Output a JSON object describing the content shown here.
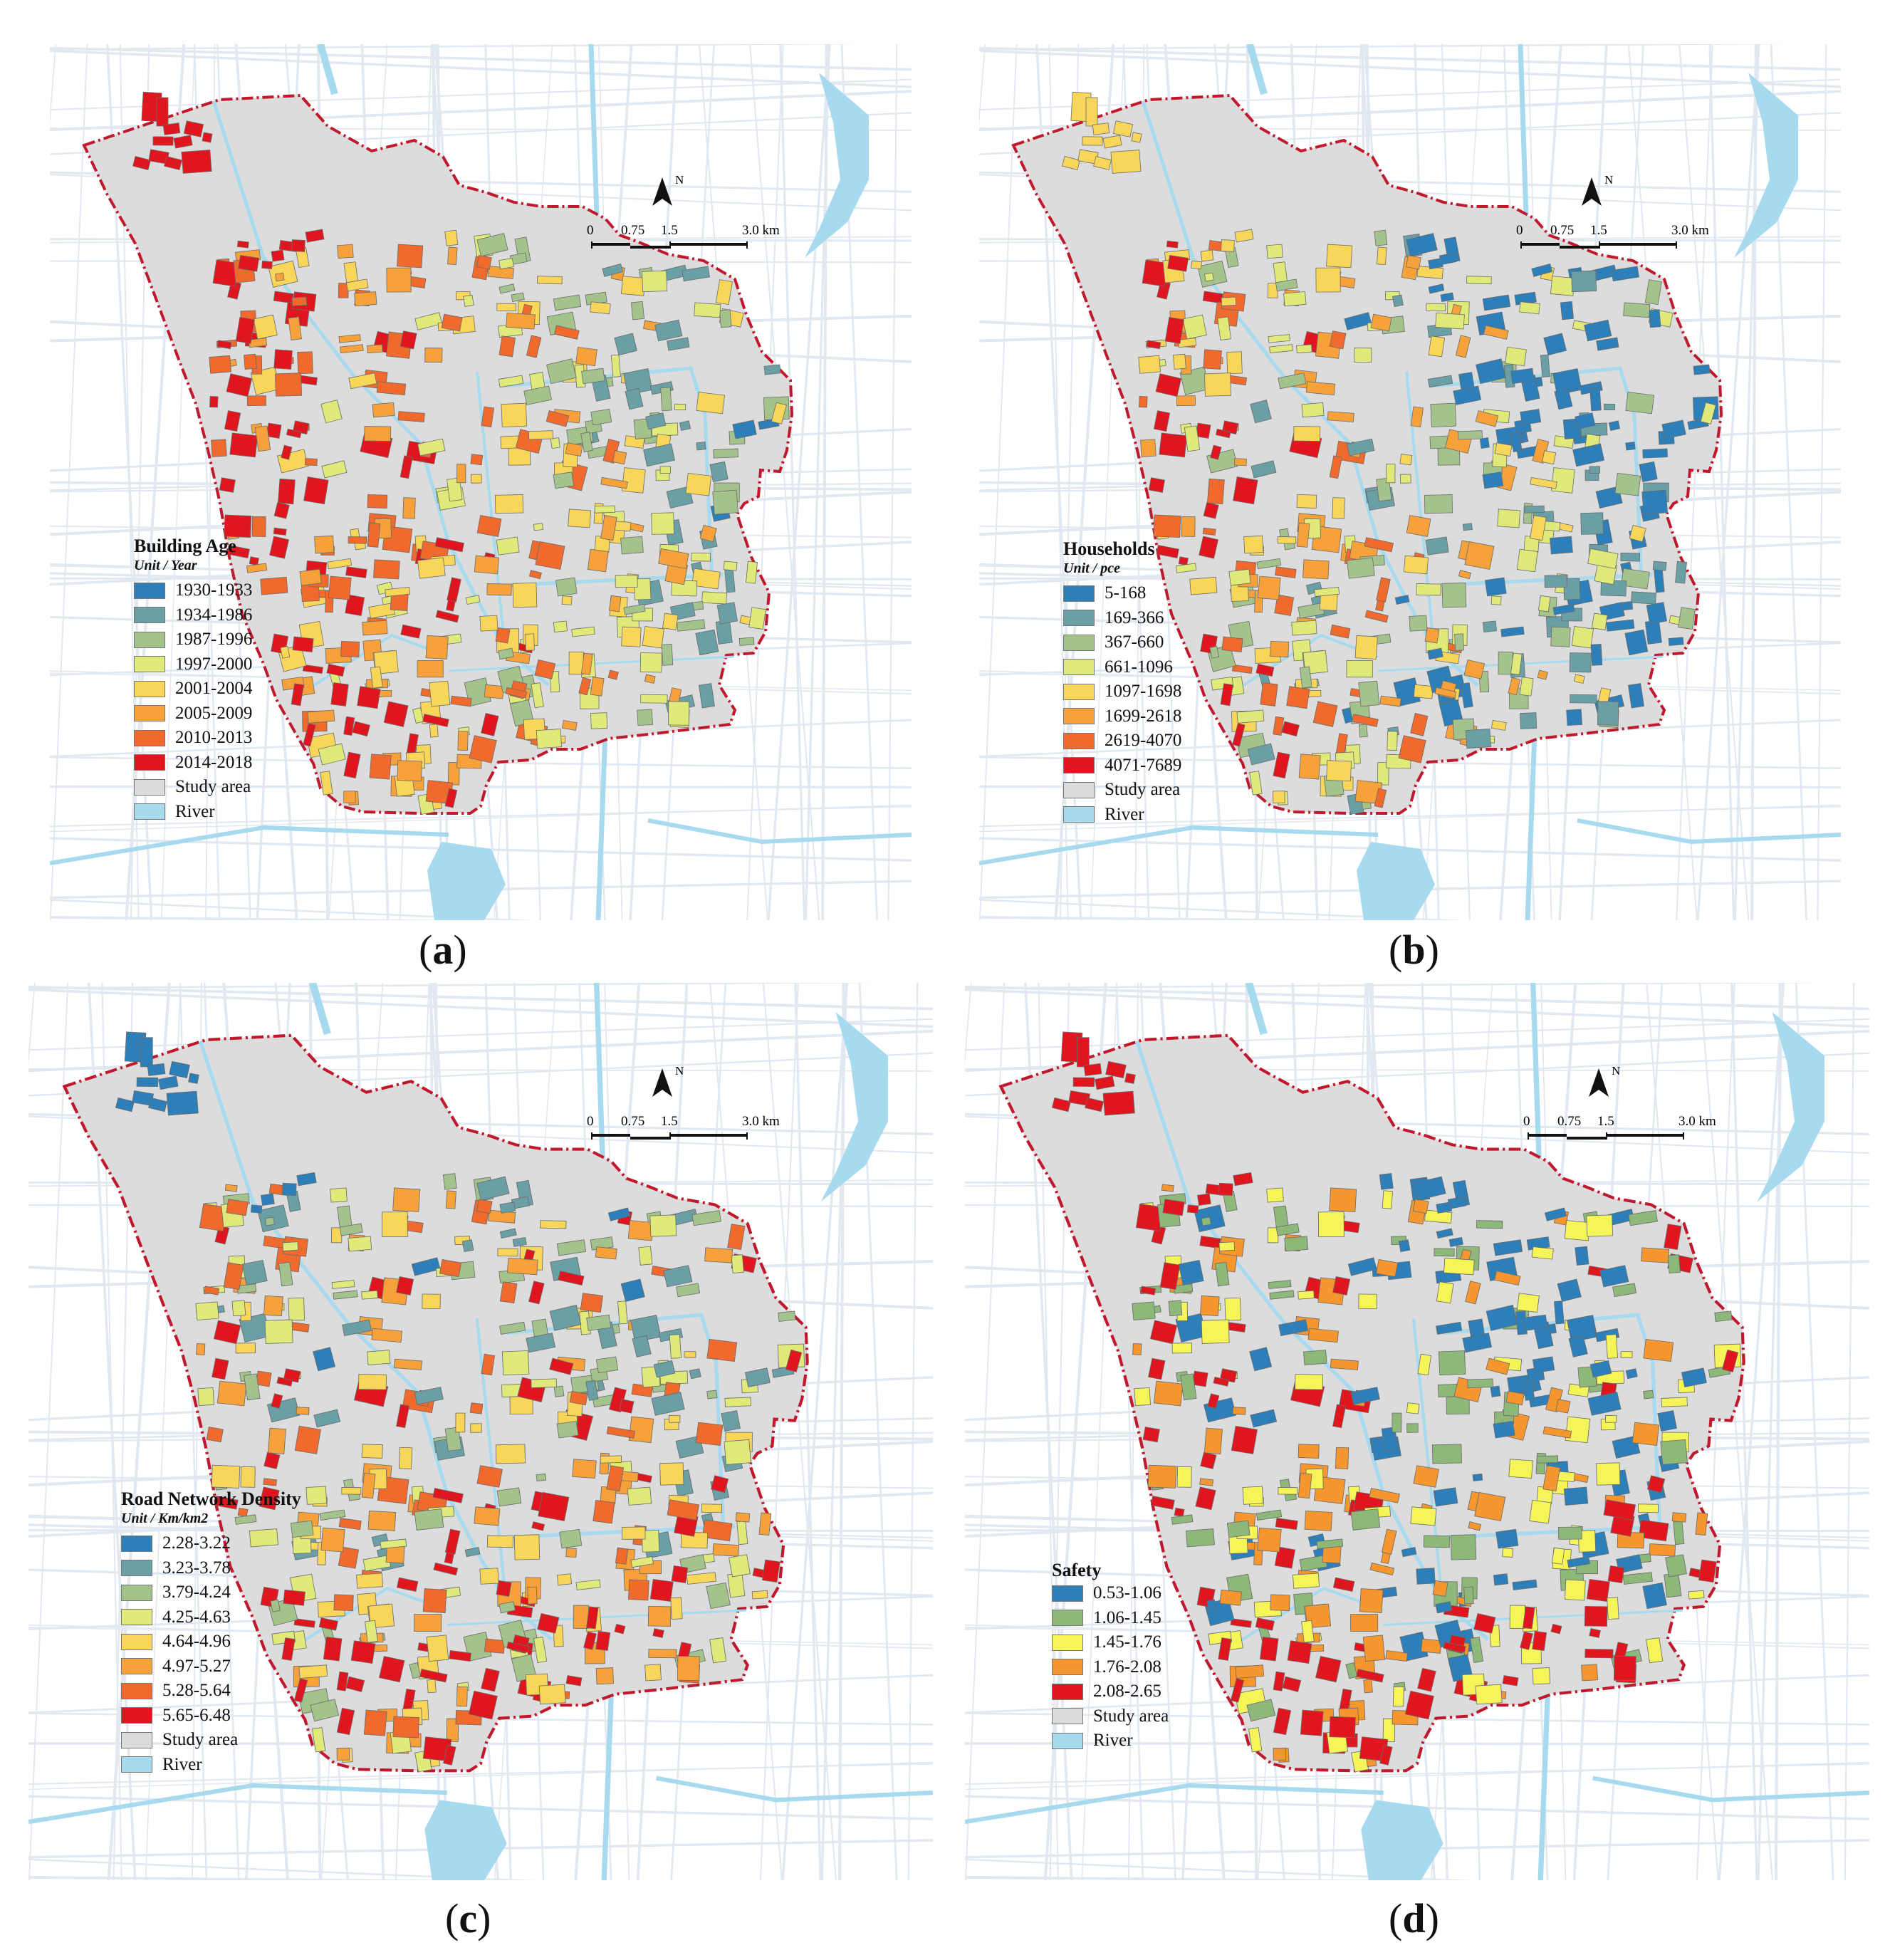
{
  "colors": {
    "study_area": "#dcdcdc",
    "river": "#a7daef",
    "boundary": "#c0192d",
    "road": "#e1e8f0"
  },
  "scalebar": {
    "ticks": [
      "0",
      "0.75",
      "1.5",
      "3.0 km"
    ],
    "north_label": "N"
  },
  "panels": [
    {
      "caption_letter": "a",
      "legend": {
        "title": "Building Age",
        "unit": "Unit / Year",
        "items": [
          {
            "label": "1930-1933",
            "color": "#2c7fb8"
          },
          {
            "label": "1934-1986",
            "color": "#6a9fa5"
          },
          {
            "label": "1987-1996",
            "color": "#a4c38c"
          },
          {
            "label": "1997-2000",
            "color": "#e0ea7a"
          },
          {
            "label": "2001-2004",
            "color": "#f8d65a"
          },
          {
            "label": "2005-2009",
            "color": "#f6a13a"
          },
          {
            "label": "2010-2013",
            "color": "#ef6a2c"
          },
          {
            "label": "2014-2018",
            "color": "#e0161f"
          },
          {
            "label": "Study area",
            "color": "#dcdcdc"
          },
          {
            "label": "River",
            "color": "#a7daef"
          }
        ]
      }
    },
    {
      "caption_letter": "b",
      "legend": {
        "title": "Households",
        "unit": "Unit / pce",
        "items": [
          {
            "label": "5-168",
            "color": "#2c7fb8"
          },
          {
            "label": "169-366",
            "color": "#6a9fa5"
          },
          {
            "label": "367-660",
            "color": "#a4c38c"
          },
          {
            "label": "661-1096",
            "color": "#e0ea7a"
          },
          {
            "label": "1097-1698",
            "color": "#f8d65a"
          },
          {
            "label": "1699-2618",
            "color": "#f6a13a"
          },
          {
            "label": "2619-4070",
            "color": "#ef6a2c"
          },
          {
            "label": "4071-7689",
            "color": "#e0161f"
          },
          {
            "label": "Study area",
            "color": "#dcdcdc"
          },
          {
            "label": "River",
            "color": "#a7daef"
          }
        ]
      }
    },
    {
      "caption_letter": "c",
      "legend": {
        "title": "Road Network Density",
        "unit": "Unit / Km/km2",
        "items": [
          {
            "label": "2.28-3.22",
            "color": "#2c7fb8"
          },
          {
            "label": "3.23-3.78",
            "color": "#6a9fa5"
          },
          {
            "label": "3.79-4.24",
            "color": "#a4c38c"
          },
          {
            "label": "4.25-4.63",
            "color": "#e0ea7a"
          },
          {
            "label": "4.64-4.96",
            "color": "#f8d65a"
          },
          {
            "label": "4.97-5.27",
            "color": "#f6a13a"
          },
          {
            "label": "5.28-5.64",
            "color": "#ef6a2c"
          },
          {
            "label": "5.65-6.48",
            "color": "#e0161f"
          },
          {
            "label": "Study area",
            "color": "#dcdcdc"
          },
          {
            "label": "River",
            "color": "#a7daef"
          }
        ]
      }
    },
    {
      "caption_letter": "d",
      "legend": {
        "title": "Safety",
        "unit": "",
        "items": [
          {
            "label": "0.53-1.06",
            "color": "#2c7fb8"
          },
          {
            "label": "1.06-1.45",
            "color": "#8db87a"
          },
          {
            "label": "1.45-1.76",
            "color": "#f5f55a"
          },
          {
            "label": "1.76-2.08",
            "color": "#f6962e"
          },
          {
            "label": "2.08-2.65",
            "color": "#e0161f"
          },
          {
            "label": "Study area",
            "color": "#dcdcdc"
          },
          {
            "label": "River",
            "color": "#a7daef"
          }
        ]
      }
    }
  ]
}
